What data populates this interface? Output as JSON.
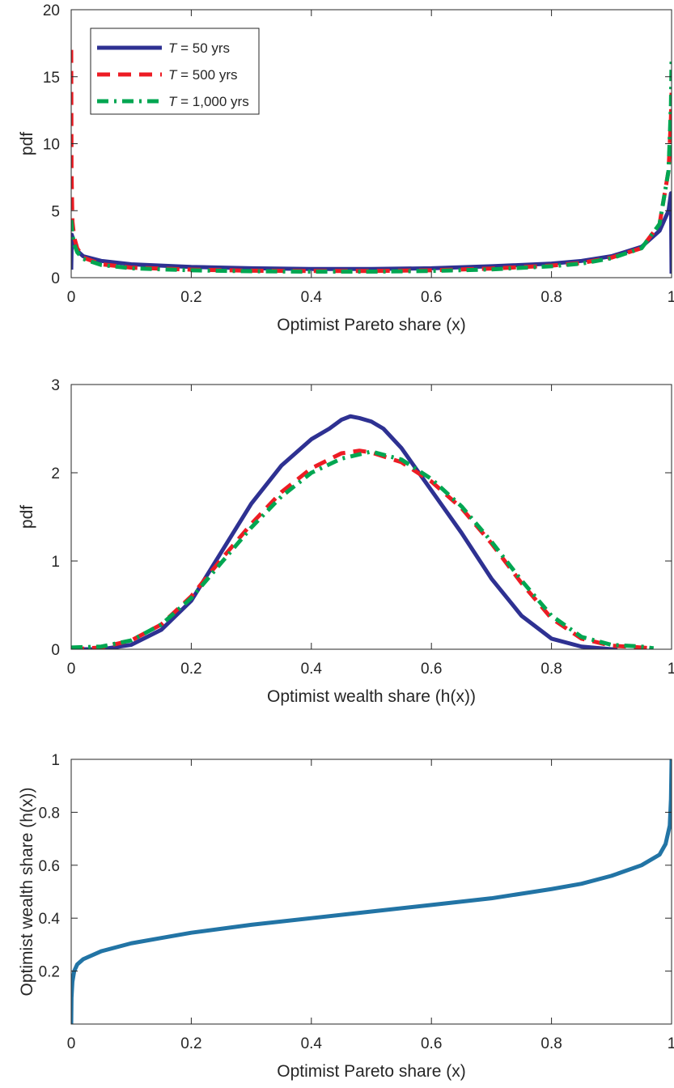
{
  "chart_data": [
    {
      "type": "line",
      "xlabel": "Optimist Pareto share (x)",
      "ylabel": "pdf",
      "xlim": [
        0,
        1
      ],
      "ylim": [
        0,
        20
      ],
      "xticks": [
        "0",
        "0.2",
        "0.4",
        "0.6",
        "0.8",
        "1"
      ],
      "yticks": [
        "0",
        "5",
        "10",
        "15",
        "20"
      ],
      "legend_position": "top-left",
      "grid": false,
      "series": [
        {
          "name": "T = 50 yrs",
          "name_italic": "T",
          "name_rest": " = 50 yrs",
          "color": "#2e3192",
          "dash": "solid",
          "points": [
            [
              0,
              0.6
            ],
            [
              0.001,
              3.2
            ],
            [
              0.005,
              2.6
            ],
            [
              0.01,
              2.0
            ],
            [
              0.02,
              1.6
            ],
            [
              0.05,
              1.25
            ],
            [
              0.1,
              1.0
            ],
            [
              0.2,
              0.8
            ],
            [
              0.3,
              0.7
            ],
            [
              0.4,
              0.65
            ],
            [
              0.5,
              0.65
            ],
            [
              0.6,
              0.7
            ],
            [
              0.7,
              0.85
            ],
            [
              0.8,
              1.05
            ],
            [
              0.85,
              1.25
            ],
            [
              0.9,
              1.6
            ],
            [
              0.95,
              2.3
            ],
            [
              0.98,
              3.5
            ],
            [
              0.995,
              5.0
            ],
            [
              0.999,
              6.3
            ],
            [
              1.0,
              0.3
            ]
          ]
        },
        {
          "name": "T = 500 yrs",
          "name_italic": "T",
          "name_rest": " = 500 yrs",
          "color": "#ed1c24",
          "dash": "dashed",
          "points": [
            [
              0,
              17.0
            ],
            [
              0.0005,
              8.0
            ],
            [
              0.002,
              4.2
            ],
            [
              0.005,
              3.0
            ],
            [
              0.01,
              2.2
            ],
            [
              0.02,
              1.5
            ],
            [
              0.05,
              1.0
            ],
            [
              0.1,
              0.75
            ],
            [
              0.2,
              0.6
            ],
            [
              0.3,
              0.52
            ],
            [
              0.4,
              0.5
            ],
            [
              0.5,
              0.5
            ],
            [
              0.6,
              0.55
            ],
            [
              0.7,
              0.68
            ],
            [
              0.8,
              0.9
            ],
            [
              0.85,
              1.1
            ],
            [
              0.9,
              1.5
            ],
            [
              0.95,
              2.2
            ],
            [
              0.98,
              4.0
            ],
            [
              0.995,
              8.0
            ],
            [
              0.999,
              12.0
            ],
            [
              1.0,
              13.8
            ]
          ]
        },
        {
          "name": "T = 1,000 yrs",
          "name_italic": "T",
          "name_rest": " = 1,000 yrs",
          "color": "#00a651",
          "dash": "dashdot",
          "points": [
            [
              0,
              4.3
            ],
            [
              0.002,
              3.2
            ],
            [
              0.005,
              2.5
            ],
            [
              0.01,
              1.9
            ],
            [
              0.02,
              1.4
            ],
            [
              0.05,
              0.95
            ],
            [
              0.1,
              0.7
            ],
            [
              0.2,
              0.55
            ],
            [
              0.3,
              0.48
            ],
            [
              0.4,
              0.45
            ],
            [
              0.5,
              0.45
            ],
            [
              0.6,
              0.5
            ],
            [
              0.7,
              0.62
            ],
            [
              0.8,
              0.85
            ],
            [
              0.85,
              1.05
            ],
            [
              0.9,
              1.45
            ],
            [
              0.95,
              2.2
            ],
            [
              0.98,
              4.0
            ],
            [
              0.995,
              8.0
            ],
            [
              0.999,
              13.0
            ],
            [
              1.0,
              16.2
            ]
          ]
        }
      ]
    },
    {
      "type": "line",
      "xlabel": "Optimist wealth share (h(x))",
      "ylabel": "pdf",
      "xlim": [
        0,
        1
      ],
      "ylim": [
        0,
        3
      ],
      "xticks": [
        "0",
        "0.2",
        "0.4",
        "0.6",
        "0.8",
        "1"
      ],
      "yticks": [
        "0",
        "1",
        "2",
        "3"
      ],
      "grid": false,
      "series": [
        {
          "name": "T = 50 yrs",
          "color": "#2e3192",
          "dash": "solid",
          "points": [
            [
              0.0,
              0.0
            ],
            [
              0.05,
              0.0
            ],
            [
              0.1,
              0.05
            ],
            [
              0.15,
              0.22
            ],
            [
              0.2,
              0.55
            ],
            [
              0.25,
              1.1
            ],
            [
              0.3,
              1.65
            ],
            [
              0.35,
              2.08
            ],
            [
              0.4,
              2.38
            ],
            [
              0.43,
              2.5
            ],
            [
              0.45,
              2.6
            ],
            [
              0.465,
              2.64
            ],
            [
              0.48,
              2.62
            ],
            [
              0.5,
              2.58
            ],
            [
              0.52,
              2.5
            ],
            [
              0.55,
              2.28
            ],
            [
              0.6,
              1.8
            ],
            [
              0.65,
              1.32
            ],
            [
              0.7,
              0.8
            ],
            [
              0.75,
              0.38
            ],
            [
              0.8,
              0.12
            ],
            [
              0.85,
              0.03
            ],
            [
              0.9,
              0.0
            ],
            [
              0.91,
              0.0
            ]
          ]
        },
        {
          "name": "T = 500 yrs",
          "color": "#ed1c24",
          "dash": "dashed",
          "points": [
            [
              0.0,
              0.0
            ],
            [
              0.05,
              0.02
            ],
            [
              0.1,
              0.1
            ],
            [
              0.15,
              0.28
            ],
            [
              0.2,
              0.6
            ],
            [
              0.25,
              1.02
            ],
            [
              0.3,
              1.42
            ],
            [
              0.35,
              1.78
            ],
            [
              0.4,
              2.05
            ],
            [
              0.45,
              2.22
            ],
            [
              0.48,
              2.25
            ],
            [
              0.5,
              2.23
            ],
            [
              0.55,
              2.12
            ],
            [
              0.6,
              1.9
            ],
            [
              0.65,
              1.6
            ],
            [
              0.7,
              1.2
            ],
            [
              0.75,
              0.75
            ],
            [
              0.8,
              0.35
            ],
            [
              0.85,
              0.12
            ],
            [
              0.9,
              0.04
            ],
            [
              0.95,
              0.02
            ],
            [
              0.97,
              0.01
            ]
          ]
        },
        {
          "name": "T = 1,000 yrs",
          "color": "#00a651",
          "dash": "dashdot",
          "points": [
            [
              0.0,
              0.02
            ],
            [
              0.05,
              0.03
            ],
            [
              0.1,
              0.1
            ],
            [
              0.15,
              0.28
            ],
            [
              0.2,
              0.58
            ],
            [
              0.25,
              0.98
            ],
            [
              0.3,
              1.38
            ],
            [
              0.35,
              1.73
            ],
            [
              0.4,
              2.0
            ],
            [
              0.45,
              2.16
            ],
            [
              0.5,
              2.24
            ],
            [
              0.55,
              2.15
            ],
            [
              0.6,
              1.93
            ],
            [
              0.65,
              1.62
            ],
            [
              0.7,
              1.22
            ],
            [
              0.75,
              0.78
            ],
            [
              0.8,
              0.38
            ],
            [
              0.85,
              0.14
            ],
            [
              0.9,
              0.05
            ],
            [
              0.95,
              0.03
            ],
            [
              0.97,
              0.01
            ]
          ]
        }
      ]
    },
    {
      "type": "line",
      "xlabel": "Optimist Pareto share (x)",
      "ylabel": "Optimist wealth share (h(x))",
      "xlim": [
        0,
        1
      ],
      "ylim": [
        0,
        1
      ],
      "xticks": [
        "0",
        "0.2",
        "0.4",
        "0.6",
        "0.8",
        "1"
      ],
      "yticks": [
        "0.2",
        "0.4",
        "0.6",
        "0.8",
        "1"
      ],
      "grid": false,
      "series": [
        {
          "color": "#2274a5",
          "dash": "solid",
          "points": [
            [
              0,
              0.0
            ],
            [
              0.0005,
              0.1
            ],
            [
              0.002,
              0.16
            ],
            [
              0.005,
              0.2
            ],
            [
              0.01,
              0.225
            ],
            [
              0.02,
              0.245
            ],
            [
              0.05,
              0.275
            ],
            [
              0.1,
              0.305
            ],
            [
              0.15,
              0.325
            ],
            [
              0.2,
              0.345
            ],
            [
              0.3,
              0.375
            ],
            [
              0.4,
              0.4
            ],
            [
              0.5,
              0.425
            ],
            [
              0.6,
              0.45
            ],
            [
              0.7,
              0.475
            ],
            [
              0.8,
              0.51
            ],
            [
              0.85,
              0.53
            ],
            [
              0.9,
              0.56
            ],
            [
              0.95,
              0.6
            ],
            [
              0.98,
              0.64
            ],
            [
              0.99,
              0.68
            ],
            [
              0.997,
              0.75
            ],
            [
              0.999,
              0.85
            ],
            [
              1.0,
              1.0
            ]
          ]
        }
      ]
    }
  ]
}
